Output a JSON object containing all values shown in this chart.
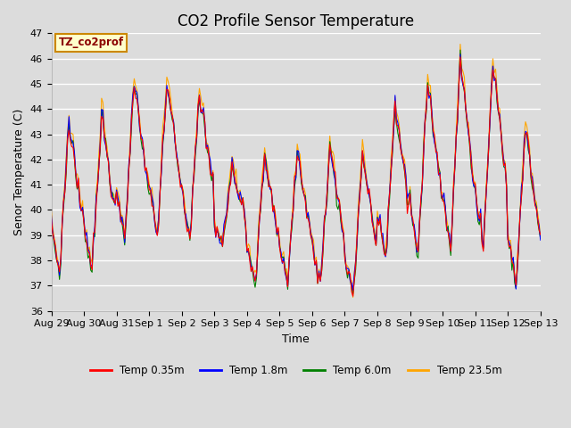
{
  "title": "CO2 Profile Sensor Temperature",
  "ylabel": "Senor Temperature (C)",
  "xlabel": "Time",
  "ylim": [
    36.0,
    47.0
  ],
  "yticks": [
    36.0,
    37.0,
    38.0,
    39.0,
    40.0,
    41.0,
    42.0,
    43.0,
    44.0,
    45.0,
    46.0,
    47.0
  ],
  "bg_color": "#dcdcdc",
  "plot_bg": "#dcdcdc",
  "legend_labels": [
    "Temp 0.35m",
    "Temp 1.8m",
    "Temp 6.0m",
    "Temp 23.5m"
  ],
  "legend_colors": [
    "red",
    "blue",
    "green",
    "orange"
  ],
  "line_colors": [
    "red",
    "blue",
    "green",
    "orange"
  ],
  "annotation_text": "TZ_co2prof",
  "annotation_bg": "#ffffcc",
  "annotation_border": "#cc8800",
  "title_fontsize": 12,
  "label_fontsize": 9,
  "tick_fontsize": 8,
  "figsize": [
    6.4,
    4.8
  ],
  "dpi": 100
}
